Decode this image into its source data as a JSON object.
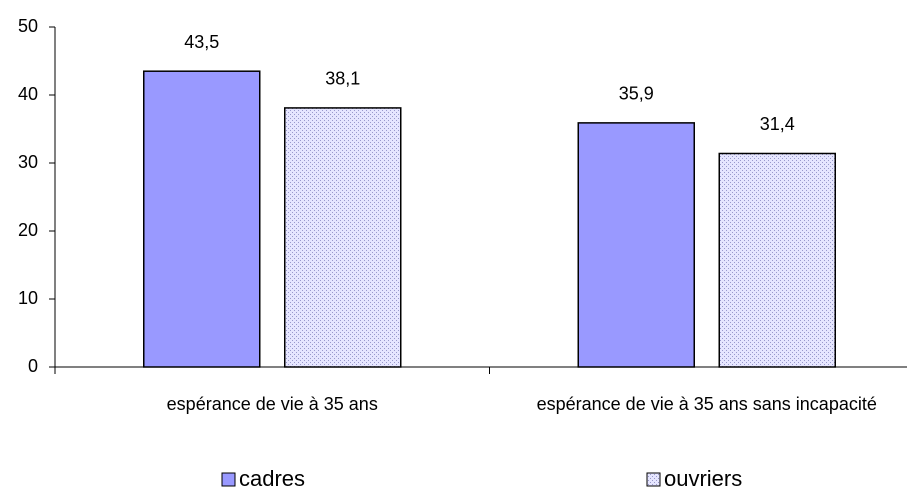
{
  "chart_data": {
    "type": "bar",
    "categories": [
      "espérance de vie à 35 ans",
      "espérance de vie à 35 ans sans incapacité"
    ],
    "series": [
      {
        "name": "cadres",
        "color": "#9999ff",
        "values": [
          43.5,
          35.9
        ],
        "value_labels": [
          "43,5",
          "35,9"
        ]
      },
      {
        "name": "ouvriers",
        "color": "#ccccff",
        "values": [
          38.1,
          31.4
        ],
        "value_labels": [
          "38,1",
          "31,4"
        ]
      }
    ],
    "ylim": [
      0,
      50
    ],
    "yticks": [
      0,
      10,
      20,
      30,
      40,
      50
    ],
    "legend": "bottom"
  }
}
